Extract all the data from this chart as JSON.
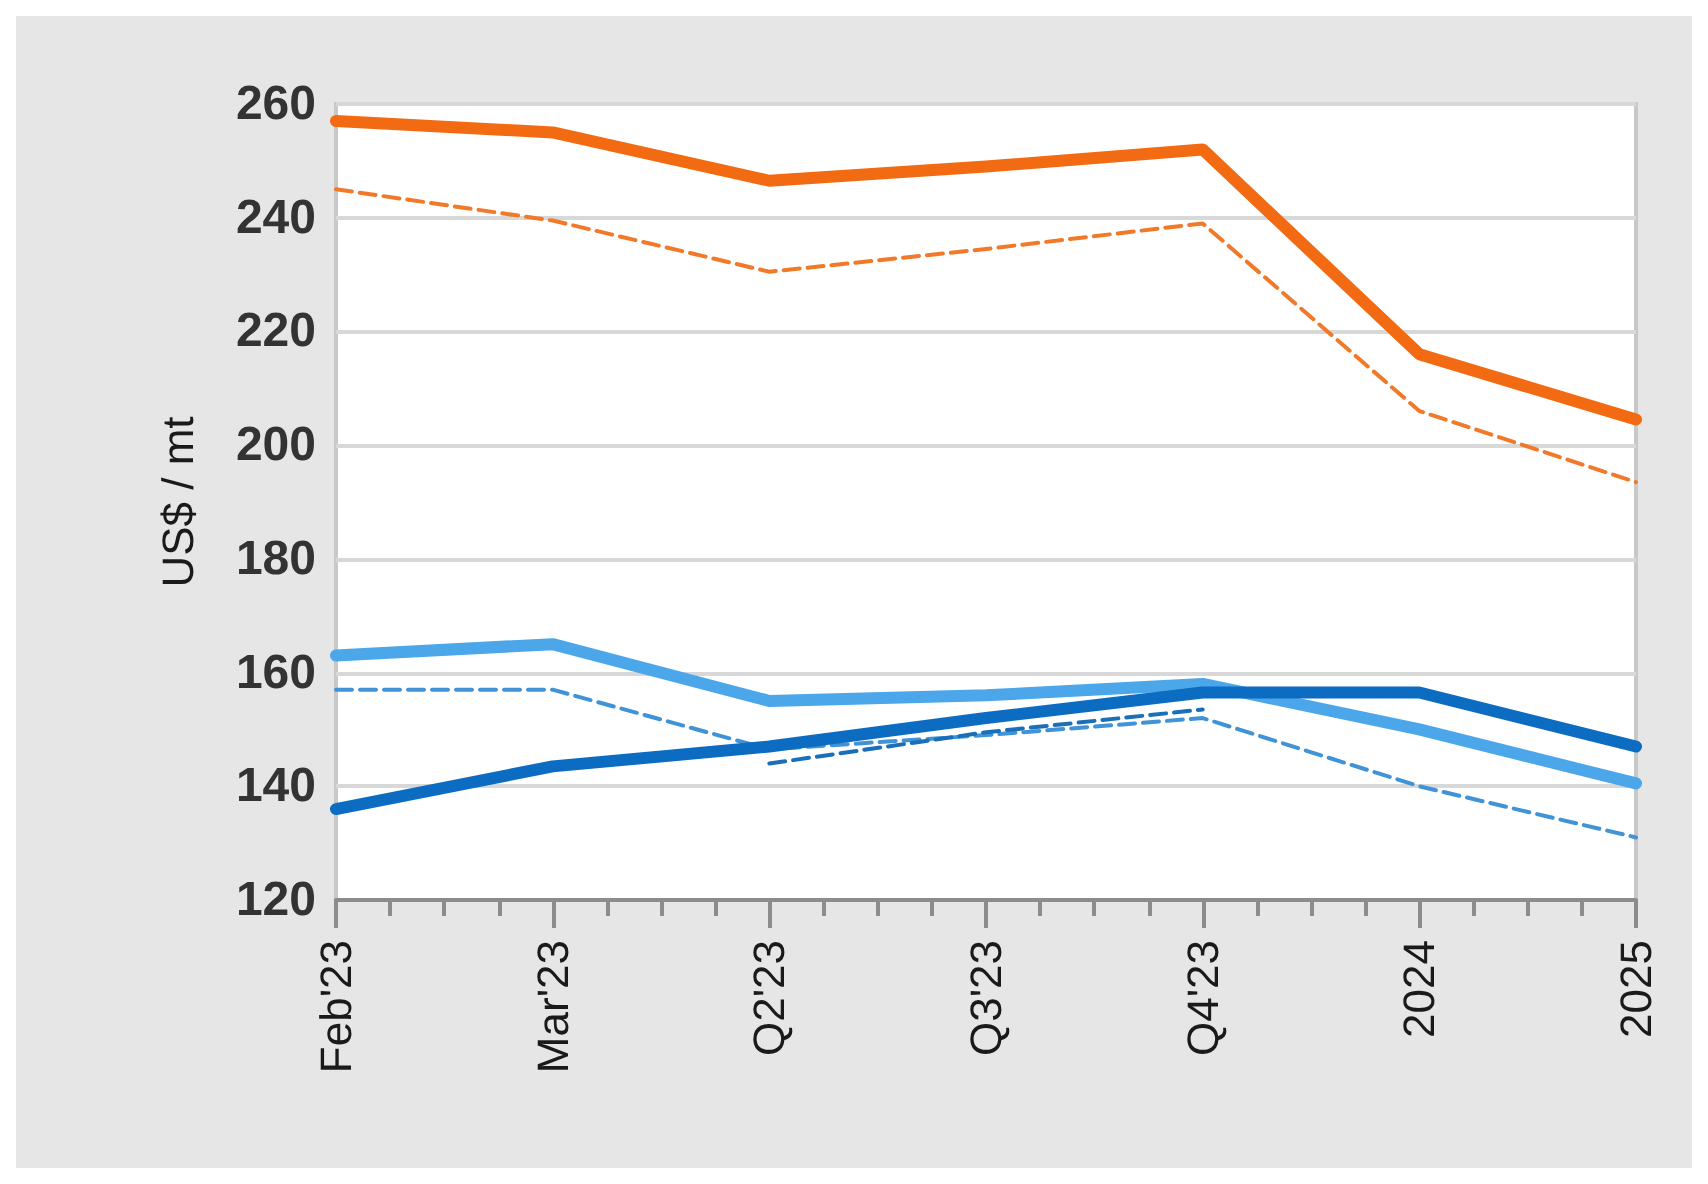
{
  "chart_data": {
    "type": "line",
    "ylabel": "US$ / mt",
    "categories": [
      "Feb'23",
      "Mar'23",
      "Q2'23",
      "Q3'23",
      "Q4'23",
      "2024",
      "2025"
    ],
    "ylim": [
      120,
      260
    ],
    "yticks": [
      120,
      140,
      160,
      180,
      200,
      220,
      240,
      260
    ],
    "grid": "y",
    "marker": "none",
    "series": [
      {
        "color": "#f26b12",
        "line_style": "solid",
        "values": [
          257,
          255,
          246.5,
          249,
          252,
          216,
          204.5
        ]
      },
      {
        "color": "#f07a2a",
        "line_style": "dashed",
        "values": [
          245,
          239.5,
          230.5,
          234.5,
          239,
          206,
          193.5
        ]
      },
      {
        "color": "#4ba6ea",
        "line_style": "solid",
        "values": [
          163,
          165,
          155,
          156,
          158,
          150,
          140.5
        ]
      },
      {
        "color": "#3f93d6",
        "line_style": "dashed",
        "values": [
          157,
          157,
          146.5,
          149,
          152,
          140,
          131
        ]
      },
      {
        "color": "#0b6cc2",
        "line_style": "solid",
        "values": [
          136,
          143.5,
          147,
          152,
          156.5,
          156.5,
          147
        ]
      },
      {
        "color": "#1a6fb8",
        "line_style": "dashed",
        "values": [
          null,
          null,
          144,
          149.5,
          153.5,
          null,
          null
        ]
      }
    ]
  }
}
